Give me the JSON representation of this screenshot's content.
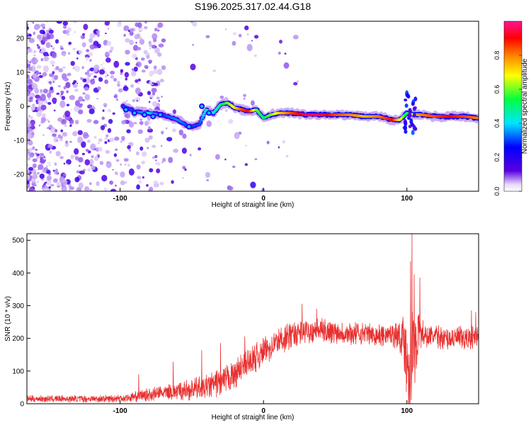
{
  "title": "S196.2025.317.02.44.G18",
  "colors": {
    "axis": "#000000",
    "snr_line": "#e8302f",
    "ridge_core": "#e8233a"
  },
  "chart_data": [
    {
      "type": "heatmap",
      "name": "spectrogram",
      "xlabel": "Height of straight line (km)",
      "ylabel": "Frequency (Hz)",
      "xlim": [
        -165,
        150
      ],
      "ylim": [
        -25,
        25
      ],
      "xticks": [
        -100,
        0,
        100
      ],
      "yticks": [
        -20,
        -10,
        0,
        10,
        20
      ],
      "xtick_labels": [
        "-100",
        "0",
        "100"
      ],
      "ytick_labels": [
        "-20",
        "-10",
        "0",
        "10",
        "20"
      ],
      "grid": false,
      "colorbar": {
        "label": "Normalized spectral amplitude",
        "range": [
          0,
          1
        ],
        "ticks": [
          0.0,
          0.2,
          0.4,
          0.6,
          0.8
        ],
        "tick_labels": [
          "0.0",
          "0.2",
          "0.4",
          "0.6",
          "0.8"
        ],
        "colormap": [
          "#ffffff",
          "#d9c7f5",
          "#5a00e0",
          "#0000ff",
          "#00e5ff",
          "#00ff40",
          "#ffff00",
          "#ff8000",
          "#ff0000",
          "#ff1493"
        ]
      },
      "ridge": {
        "x": [
          -98,
          -90,
          -80,
          -70,
          -60,
          -52,
          -45,
          -40,
          -35,
          -30,
          -25,
          -20,
          -15,
          -10,
          -5,
          0,
          5,
          10,
          20,
          30,
          40,
          50,
          60,
          70,
          80,
          85,
          90,
          95,
          100,
          105,
          110,
          120,
          130,
          140,
          150
        ],
        "freq": [
          0,
          -1.5,
          -2.0,
          -2.5,
          -4.0,
          -6.0,
          -5.5,
          -1.0,
          -2.0,
          0.5,
          1.0,
          -0.5,
          -1.0,
          -1.5,
          -1.0,
          -3.5,
          -2.5,
          -2.0,
          -2.0,
          -2.5,
          -2.5,
          -2.5,
          -2.5,
          -3.0,
          -3.0,
          -3.5,
          -4.0,
          -4.0,
          -2.0,
          -2.5,
          -2.5,
          -3.0,
          -3.0,
          -3.0,
          -3.5
        ],
        "amplitude": [
          0.3,
          0.3,
          0.4,
          0.3,
          0.35,
          0.3,
          0.3,
          0.45,
          0.4,
          0.5,
          0.6,
          0.7,
          0.85,
          0.9,
          0.6,
          0.5,
          0.6,
          0.7,
          0.85,
          0.95,
          0.95,
          0.85,
          0.8,
          0.75,
          0.8,
          0.85,
          0.9,
          0.7,
          0.5,
          0.7,
          0.8,
          0.85,
          0.9,
          0.85,
          0.8
        ]
      }
    },
    {
      "type": "line",
      "name": "snr",
      "xlabel": "Height of straight line (km)",
      "ylabel": "SNR (10 * v/v)",
      "xlim": [
        -165,
        150
      ],
      "ylim": [
        0,
        520
      ],
      "xticks": [
        -100,
        0,
        100
      ],
      "yticks": [
        0,
        100,
        200,
        300,
        400,
        500
      ],
      "xtick_labels": [
        "-100",
        "0",
        "100"
      ],
      "ytick_labels": [
        "0",
        "100",
        "200",
        "300",
        "400",
        "500"
      ],
      "grid": false,
      "series": [
        {
          "name": "SNR",
          "trend_x": [
            -165,
            -140,
            -110,
            -95,
            -80,
            -60,
            -40,
            -25,
            -10,
            0,
            10,
            20,
            30,
            40,
            50,
            60,
            70,
            80,
            90,
            95,
            98,
            100,
            102,
            105,
            108,
            110,
            115,
            120,
            130,
            140,
            150
          ],
          "trend_y": [
            15,
            15,
            15,
            18,
            28,
            38,
            50,
            75,
            125,
            160,
            190,
            210,
            225,
            225,
            220,
            215,
            215,
            210,
            210,
            210,
            200,
            140,
            110,
            170,
            220,
            215,
            205,
            205,
            200,
            200,
            205
          ],
          "noise_amp_x": [
            -165,
            -100,
            -60,
            -30,
            0,
            30,
            60,
            90,
            97,
            100,
            103,
            106,
            110,
            115,
            150
          ],
          "noise_amp_y": [
            10,
            12,
            28,
            45,
            45,
            40,
            35,
            35,
            60,
            160,
            190,
            120,
            50,
            35,
            40
          ],
          "spikes": [
            {
              "x": -87,
              "y": 90
            },
            {
              "x": -63,
              "y": 128
            },
            {
              "x": -43,
              "y": 163
            },
            {
              "x": -30,
              "y": 185
            },
            {
              "x": -13,
              "y": 205
            },
            {
              "x": 27,
              "y": 305
            },
            {
              "x": 37,
              "y": 290
            },
            {
              "x": 102.5,
              "y": 435
            },
            {
              "x": 103.5,
              "y": 525
            },
            {
              "x": 105,
              "y": 395
            },
            {
              "x": 109,
              "y": 385
            },
            {
              "x": 145,
              "y": 285
            },
            {
              "x": 148,
              "y": 280
            }
          ]
        }
      ]
    }
  ]
}
